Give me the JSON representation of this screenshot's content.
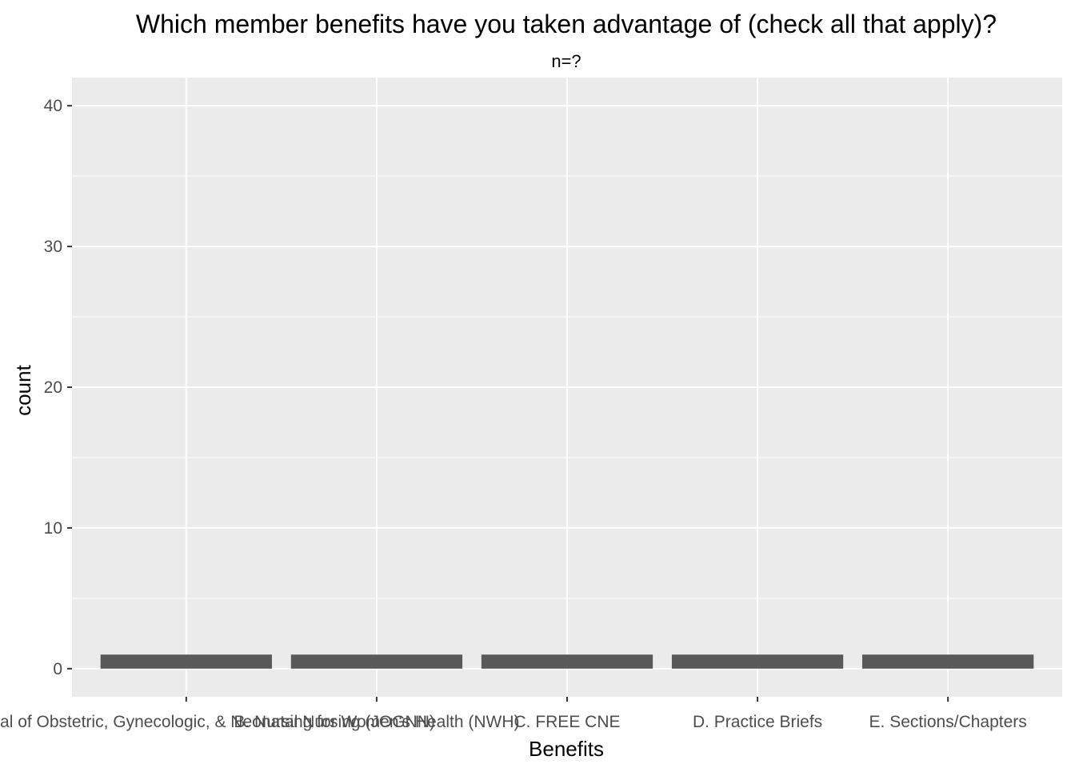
{
  "chart_data": {
    "type": "bar",
    "title": "Which member benefits have you taken advantage of (check all that apply)?",
    "subtitle": "n=?",
    "xlabel": "Benefits",
    "ylabel": "count",
    "categories": [
      "A. Journal of Obstetric, Gynecologic, & Neonatal Nursing (JOGNN)",
      "B. Nursing for Women's Health (NWH)",
      "C. FREE CNE",
      "D. Practice Briefs",
      "E. Sections/Chapters"
    ],
    "values": [
      1,
      1,
      1,
      1,
      1
    ],
    "ylim": [
      -2,
      42
    ],
    "yticks": [
      0,
      10,
      20,
      30,
      40
    ],
    "grid": true,
    "legend": "none",
    "colors": {
      "panel": "#ebebeb",
      "bar": "#595959",
      "grid": "#ffffff"
    }
  }
}
